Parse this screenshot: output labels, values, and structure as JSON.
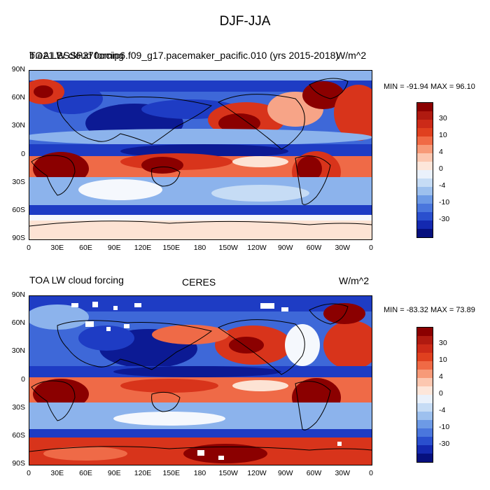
{
  "title": "DJF-JJA",
  "lat_labels": [
    "90N",
    "60N",
    "30N",
    "0",
    "30S",
    "60S",
    "90S"
  ],
  "lon_labels": [
    "0",
    "30E",
    "60E",
    "90E",
    "120E",
    "150E",
    "180",
    "150W",
    "120W",
    "90W",
    "60W",
    "30W",
    "0"
  ],
  "panels": [
    {
      "left_title": "TOA LW cloud forcing",
      "overlap_title": "b.e21.BSSP370cmip6.f09_g17.pacemaker_pacific.010 (yrs 2015-2018)",
      "center_title": "",
      "units": "W/m^2",
      "minmax": "MIN = -91.94 MAX =  96.10"
    },
    {
      "left_title": "TOA LW cloud forcing",
      "overlap_title": "",
      "center_title": "CERES",
      "units": "W/m^2",
      "minmax": "MIN = -83.32 MAX =  73.89"
    }
  ],
  "colorbar": {
    "labels": [
      "30",
      "10",
      "4",
      "0",
      "-4",
      "-10",
      "-30"
    ],
    "colors": [
      "#8b0000",
      "#b01a10",
      "#cc2a18",
      "#e0401f",
      "#f06a45",
      "#f79a78",
      "#fcc7b0",
      "#fde6da",
      "#eaf1fb",
      "#c6dcf5",
      "#9dc0ee",
      "#6d9ae6",
      "#4a76dd",
      "#2a4fce",
      "#1429b0",
      "#06107e"
    ]
  },
  "colors": {
    "red_dark": "#8b0000",
    "red": "#d8341b",
    "red_mid": "#ef6a47",
    "pink": "#f7a487",
    "cream": "#fde3d4",
    "white": "#f5f8fd",
    "blue_pale": "#c6dcf5",
    "blue_light": "#8cb3ec",
    "blue": "#3e68d8",
    "blue_dark": "#1e3cc4",
    "navy": "#0c1a94",
    "land": "#000000"
  }
}
